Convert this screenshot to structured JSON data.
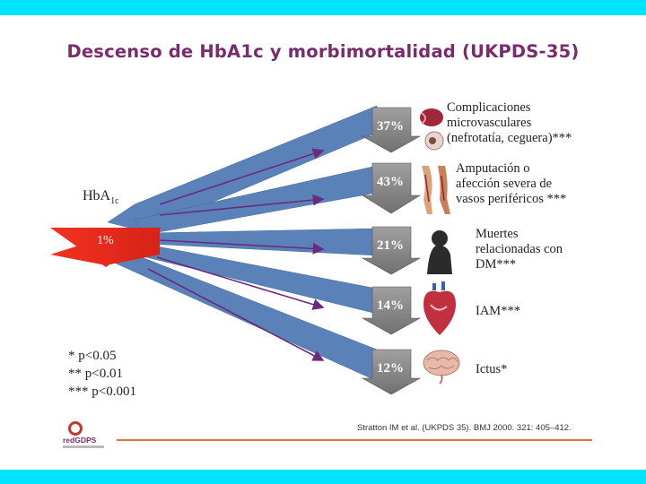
{
  "title": "Descenso de HbA1c y morbimortalidad (UKPDS-35)",
  "hba1c": {
    "label": "HbA",
    "sub": "1c",
    "decrease": "1%"
  },
  "outcomes": [
    {
      "pct": "37%",
      "label": "Complicaciones\nmicrovasculares\n(nefrotatía, ceguera)***",
      "icon": "kidney-eye-icon"
    },
    {
      "pct": "43%",
      "label": "Amputación o\nafección severa de\nvasos periféricos ***",
      "icon": "legs-icon"
    },
    {
      "pct": "21%",
      "label": "Muertes\nrelacionadas con\nDM***",
      "icon": "person-silhouette-icon"
    },
    {
      "pct": "14%",
      "label": "IAM***",
      "icon": "heart-icon"
    },
    {
      "pct": "12%",
      "label": "Ictus*",
      "icon": "brain-icon"
    }
  ],
  "legend": [
    "* p<0.05",
    "** p<0.01",
    "*** p<0.001"
  ],
  "reference": "Stratton IM et al. (UKPDS 35). BMJ 2000. 321: 405–412.",
  "logo": "redGDPS",
  "colors": {
    "accent_bar": "#00e5ff",
    "title": "#7a2a6e",
    "fan": "#5a82b8",
    "big_arrow": "#e8281e",
    "pct_arrow": "#8a8a8a",
    "lines": "#6a2a80"
  }
}
